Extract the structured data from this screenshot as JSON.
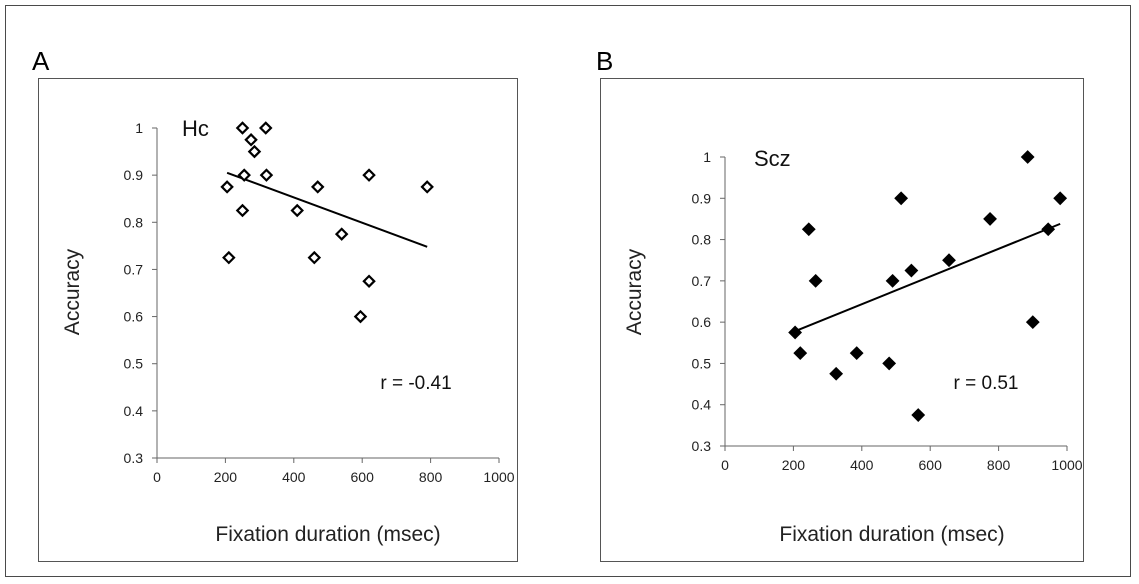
{
  "chart_data": [
    {
      "panel": "A",
      "type": "scatter",
      "series_label": "Hc",
      "annotation": "r = -0.41",
      "xlabel": "Fixation duration (msec)",
      "ylabel": "Accuracy",
      "xlim": [
        0,
        1000
      ],
      "ylim": [
        0.3,
        1
      ],
      "xticks": [
        "0",
        "200",
        "400",
        "600",
        "800",
        "1000"
      ],
      "yticks": [
        "0.3",
        "0.4",
        "0.5",
        "0.6",
        "0.7",
        "0.8",
        "0.9",
        "1"
      ],
      "marker": "hollow-diamond",
      "trendline": [
        [
          205,
          0.905
        ],
        [
          790,
          0.748
        ]
      ],
      "points": [
        [
          250,
          1.0
        ],
        [
          318,
          1.0
        ],
        [
          275,
          0.975
        ],
        [
          285,
          0.95
        ],
        [
          255,
          0.9
        ],
        [
          320,
          0.9
        ],
        [
          620,
          0.9
        ],
        [
          205,
          0.875
        ],
        [
          470,
          0.875
        ],
        [
          790,
          0.875
        ],
        [
          250,
          0.825
        ],
        [
          410,
          0.825
        ],
        [
          540,
          0.775
        ],
        [
          210,
          0.725
        ],
        [
          460,
          0.725
        ],
        [
          620,
          0.675
        ],
        [
          595,
          0.6
        ]
      ]
    },
    {
      "panel": "B",
      "type": "scatter",
      "series_label": "Scz",
      "annotation": "r = 0.51",
      "xlabel": "Fixation duration (msec)",
      "ylabel": "Accuracy",
      "xlim": [
        0,
        1000
      ],
      "ylim": [
        0.3,
        1
      ],
      "xticks": [
        "0",
        "200",
        "400",
        "600",
        "800",
        "1000"
      ],
      "yticks": [
        "0.3",
        "0.4",
        "0.5",
        "0.6",
        "0.7",
        "0.8",
        "0.9",
        "1"
      ],
      "marker": "filled-diamond",
      "trendline": [
        [
          205,
          0.578
        ],
        [
          980,
          0.838
        ]
      ],
      "points": [
        [
          885,
          1.0
        ],
        [
          515,
          0.9
        ],
        [
          980,
          0.9
        ],
        [
          775,
          0.85
        ],
        [
          245,
          0.825
        ],
        [
          945,
          0.825
        ],
        [
          655,
          0.75
        ],
        [
          545,
          0.725
        ],
        [
          265,
          0.7
        ],
        [
          490,
          0.7
        ],
        [
          900,
          0.6
        ],
        [
          205,
          0.575
        ],
        [
          220,
          0.525
        ],
        [
          385,
          0.525
        ],
        [
          480,
          0.5
        ],
        [
          325,
          0.475
        ],
        [
          565,
          0.375
        ]
      ]
    }
  ]
}
